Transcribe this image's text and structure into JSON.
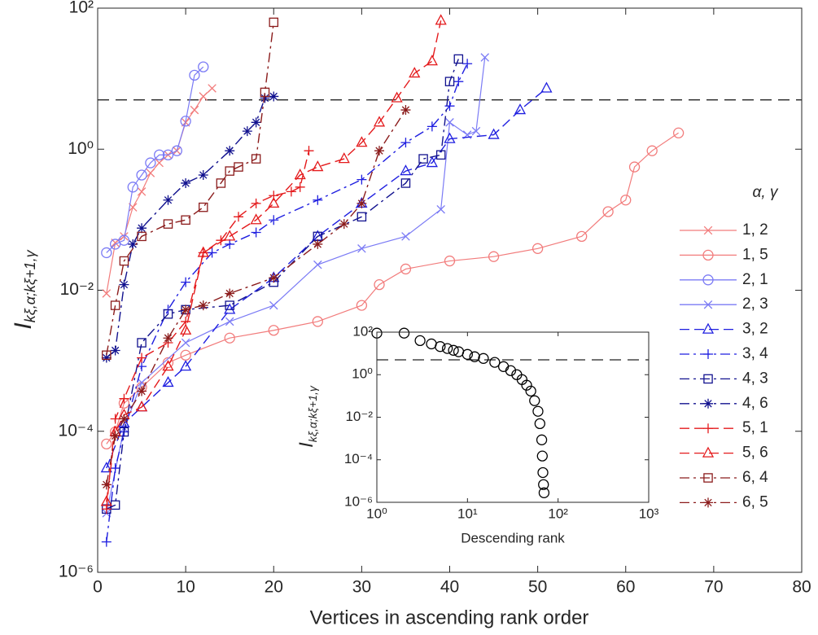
{
  "chart_data": [
    {
      "type": "line",
      "xlabel": "Vertices in ascending rank order",
      "ylabel": "I",
      "ylabel_sub": "kξ,α;kξ+1,γ",
      "legend_title": "α, γ",
      "legend": "right",
      "threshold": 5,
      "xlim": [
        0,
        80
      ],
      "xticks": [
        0,
        10,
        20,
        30,
        40,
        50,
        60,
        70,
        80
      ],
      "ylim": [
        1e-06,
        100
      ],
      "yscale": "log",
      "yticks": [
        {
          "value": 1e-06,
          "label": "10⁻⁶"
        },
        {
          "value": 0.0001,
          "label": "10⁻⁴"
        },
        {
          "value": 0.01,
          "label": "10⁻²"
        },
        {
          "value": 1,
          "label": "10⁰"
        },
        {
          "value": 100,
          "label": "10²"
        }
      ],
      "series": [
        {
          "name": "1, 2",
          "color": "#f27c7c",
          "marker": "x",
          "dash": "solid",
          "x": [
            1,
            2,
            3,
            4,
            5,
            6,
            7,
            8,
            9,
            10,
            11,
            12,
            13
          ],
          "values": [
            0.009,
            0.047,
            0.058,
            0.15,
            0.25,
            0.46,
            0.64,
            0.83,
            0.95,
            2.4,
            3.6,
            5.6,
            7.3
          ]
        },
        {
          "name": "1, 5",
          "color": "#f27c7c",
          "marker": "o",
          "dash": "solid",
          "x": [
            1,
            2,
            3,
            5,
            8,
            10,
            15,
            20,
            25,
            30,
            32,
            35,
            40,
            45,
            50,
            55,
            58,
            60,
            61,
            63,
            66
          ],
          "values": [
            6.6e-05,
            9.8e-05,
            0.00025,
            0.00042,
            0.00094,
            0.0012,
            0.0021,
            0.0027,
            0.0036,
            0.0061,
            0.012,
            0.02,
            0.026,
            0.03,
            0.039,
            0.058,
            0.13,
            0.19,
            0.56,
            0.95,
            1.7
          ]
        },
        {
          "name": "2, 1",
          "color": "#7b7bf5",
          "marker": "o",
          "dash": "solid",
          "x": [
            1,
            2,
            3,
            4,
            5,
            6,
            7,
            8,
            9,
            10,
            11,
            12
          ],
          "values": [
            0.034,
            0.045,
            0.051,
            0.29,
            0.43,
            0.64,
            0.83,
            0.83,
            0.95,
            2.5,
            11.2,
            14.7
          ]
        },
        {
          "name": "2, 3",
          "color": "#7b7bf5",
          "marker": "x",
          "dash": "solid",
          "x": [
            1,
            3,
            5,
            10,
            15,
            20,
            25,
            30,
            35,
            39,
            40,
            42,
            43,
            44
          ],
          "values": [
            6.9e-06,
            0.00011,
            0.00049,
            0.0018,
            0.0036,
            0.0061,
            0.023,
            0.039,
            0.058,
            0.14,
            2.4,
            1.6,
            1.8,
            20
          ]
        },
        {
          "name": "3, 2",
          "color": "#1f1fe0",
          "marker": "^",
          "dash": "dashed",
          "x": [
            1,
            3,
            5,
            8,
            10,
            15,
            20,
            25,
            30,
            35,
            38,
            40,
            45,
            48,
            51
          ],
          "values": [
            3e-05,
            0.00013,
            0.00022,
            0.00049,
            0.00083,
            0.0053,
            0.015,
            0.058,
            0.17,
            0.49,
            0.64,
            1.4,
            1.6,
            3.6,
            7.3
          ]
        },
        {
          "name": "3, 4",
          "color": "#1f1fe0",
          "marker": "+",
          "dash": "dashdot",
          "x": [
            1,
            2,
            3,
            5,
            8,
            10,
            13,
            15,
            18,
            20,
            25,
            30,
            35,
            38,
            40,
            41,
            42
          ],
          "values": [
            2.7e-06,
            3e-05,
            9.8e-05,
            0.00083,
            0.0053,
            0.013,
            0.034,
            0.045,
            0.066,
            0.099,
            0.19,
            0.37,
            1.24,
            2.1,
            4.1,
            9.1,
            16.3
          ]
        },
        {
          "name": "4, 3",
          "color": "#12128f",
          "marker": "s",
          "dash": "dashdot",
          "x": [
            1,
            2,
            3,
            5,
            8,
            10,
            15,
            20,
            25,
            30,
            35,
            37,
            39,
            40,
            41
          ],
          "values": [
            7.9e-06,
            9e-06,
            9.8e-05,
            0.0018,
            0.0046,
            0.0053,
            0.0061,
            0.013,
            0.058,
            0.11,
            0.33,
            0.73,
            0.83,
            9.1,
            19
          ]
        },
        {
          "name": "4, 6",
          "color": "#12128f",
          "marker": "*",
          "dash": "dashdot",
          "x": [
            1,
            2,
            3,
            4,
            5,
            8,
            10,
            12,
            15,
            17,
            18,
            19,
            20
          ],
          "values": [
            0.0011,
            0.0014,
            0.012,
            0.045,
            0.076,
            0.19,
            0.33,
            0.43,
            0.95,
            1.8,
            2.4,
            5.3,
            5.6
          ]
        },
        {
          "name": "5, 1",
          "color": "#e41a1c",
          "marker": "+",
          "dash": "dashed",
          "x": [
            1,
            2,
            3,
            5,
            8,
            10,
            12,
            14,
            16,
            18,
            20,
            22,
            23,
            24
          ],
          "values": [
            7.9e-06,
            0.00015,
            0.00029,
            0.0011,
            0.0018,
            0.0036,
            0.034,
            0.051,
            0.11,
            0.17,
            0.22,
            0.25,
            0.29,
            0.95
          ]
        },
        {
          "name": "5, 6",
          "color": "#e41a1c",
          "marker": "^",
          "dash": "dashed",
          "x": [
            1,
            2,
            3,
            5,
            8,
            10,
            12,
            15,
            18,
            20,
            23,
            25,
            28,
            30,
            32,
            34,
            36,
            38,
            39
          ],
          "values": [
            1e-05,
            9.8e-05,
            0.00017,
            0.00022,
            0.00083,
            0.0027,
            0.034,
            0.058,
            0.099,
            0.17,
            0.43,
            0.56,
            0.73,
            1.24,
            2.4,
            5.3,
            11.9,
            17.7,
            66.7
          ]
        },
        {
          "name": "6, 4",
          "color": "#8b1c1c",
          "marker": "s",
          "dash": "dashdot",
          "x": [
            1,
            2,
            3,
            5,
            8,
            10,
            12,
            14,
            15,
            16,
            18,
            19,
            20
          ],
          "values": [
            0.0012,
            0.0061,
            0.026,
            0.058,
            0.087,
            0.099,
            0.15,
            0.33,
            0.49,
            0.56,
            0.73,
            6.4,
            63
          ]
        },
        {
          "name": "6, 5",
          "color": "#8b1c1c",
          "marker": "*",
          "dash": "dashdot",
          "x": [
            1,
            2,
            3,
            5,
            8,
            10,
            12,
            15,
            20,
            25,
            28,
            30,
            32,
            35
          ],
          "values": [
            1.75e-05,
            8.6e-05,
            0.00015,
            0.00037,
            0.0021,
            0.0053,
            0.0061,
            0.009,
            0.015,
            0.045,
            0.087,
            0.17,
            0.95,
            3.6
          ]
        }
      ]
    },
    {
      "type": "scatter",
      "xlabel": "Descending rank",
      "ylabel": "I",
      "ylabel_sub": "kξ,α;kξ+1,γ",
      "threshold": 5,
      "xlim": [
        1,
        1000
      ],
      "xscale": "log",
      "xticks": [
        {
          "value": 1,
          "label": "10⁰"
        },
        {
          "value": 10,
          "label": "10¹"
        },
        {
          "value": 100,
          "label": "10²"
        },
        {
          "value": 1000,
          "label": "10³"
        }
      ],
      "ylim": [
        1e-06,
        100
      ],
      "yscale": "log",
      "yticks": [
        {
          "value": 1e-06,
          "label": "10⁻⁶"
        },
        {
          "value": 0.0001,
          "label": "10⁻⁴"
        },
        {
          "value": 0.01,
          "label": "10⁻²"
        },
        {
          "value": 1,
          "label": "10⁰"
        },
        {
          "value": 100,
          "label": "10²"
        }
      ],
      "color": "#000000",
      "x": [
        1,
        2,
        3,
        4,
        5,
        6,
        7,
        8,
        10,
        12,
        15,
        20,
        25,
        30,
        35,
        40,
        45,
        50,
        55,
        60,
        63,
        66,
        67,
        68,
        69,
        70
      ],
      "values": [
        90,
        90,
        40,
        28,
        21,
        17,
        14,
        12,
        9,
        7,
        5.8,
        3.8,
        2.4,
        1.55,
        1,
        0.59,
        0.32,
        0.17,
        0.06,
        0.019,
        0.005,
        0.00086,
        0.00015,
        2.5e-05,
        6.8e-06,
        2.8e-06
      ]
    }
  ]
}
